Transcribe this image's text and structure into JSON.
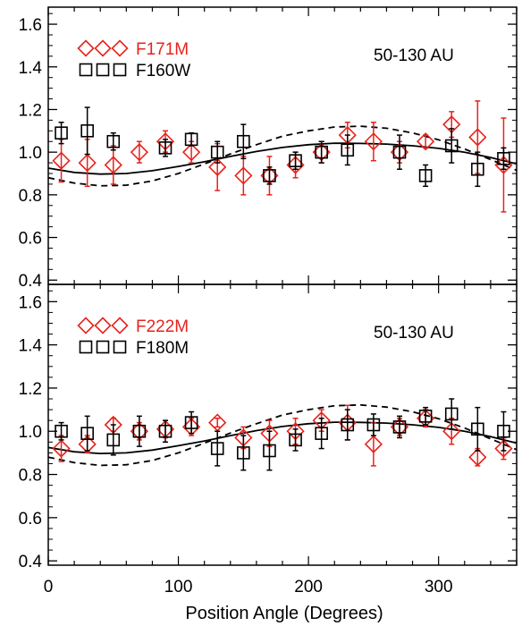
{
  "chart_data": [
    {
      "type": "scatter",
      "panel": "top",
      "xlim": [
        0,
        360
      ],
      "ylim": [
        0.38,
        1.68
      ],
      "y_ticks": [
        0.4,
        0.6,
        0.8,
        1.0,
        1.2,
        1.4,
        1.6
      ],
      "y_tick_labels": [
        "0.4",
        "0.6",
        "0.8",
        "1.0",
        "1.2",
        "1.4",
        "1.6"
      ],
      "annotation": "50-130 AU",
      "legend_position": "top-left",
      "series": [
        {
          "name": "F171M",
          "marker": "diamond",
          "color": "#e8221b",
          "points": [
            {
              "x": 10,
              "y": 0.96,
              "err": 0.1
            },
            {
              "x": 30,
              "y": 0.95,
              "err": 0.11
            },
            {
              "x": 50,
              "y": 0.94,
              "err": 0.09
            },
            {
              "x": 70,
              "y": 1.0,
              "err": 0.05
            },
            {
              "x": 90,
              "y": 1.05,
              "err": 0.05
            },
            {
              "x": 110,
              "y": 1.0,
              "err": 0.05
            },
            {
              "x": 130,
              "y": 0.93,
              "err": 0.11
            },
            {
              "x": 150,
              "y": 0.89,
              "err": 0.09
            },
            {
              "x": 170,
              "y": 0.89,
              "err": 0.09
            },
            {
              "x": 190,
              "y": 0.94,
              "err": 0.06
            },
            {
              "x": 210,
              "y": 1.0,
              "err": 0.05
            },
            {
              "x": 230,
              "y": 1.08,
              "err": 0.06
            },
            {
              "x": 250,
              "y": 1.05,
              "err": 0.09
            },
            {
              "x": 270,
              "y": 1.0,
              "err": 0.05
            },
            {
              "x": 290,
              "y": 1.05,
              "err": 0.03
            },
            {
              "x": 310,
              "y": 1.13,
              "err": 0.06
            },
            {
              "x": 330,
              "y": 1.07,
              "err": 0.17
            },
            {
              "x": 350,
              "y": 0.94,
              "err": 0.22
            }
          ]
        },
        {
          "name": "F160W",
          "marker": "square",
          "color": "#000000",
          "points": [
            {
              "x": 10,
              "y": 1.09,
              "err": 0.05
            },
            {
              "x": 30,
              "y": 1.1,
              "err": 0.11
            },
            {
              "x": 50,
              "y": 1.05,
              "err": 0.04
            },
            {
              "x": 90,
              "y": 1.02,
              "err": 0.04
            },
            {
              "x": 110,
              "y": 1.06,
              "err": 0.03
            },
            {
              "x": 130,
              "y": 1.0,
              "err": 0.05
            },
            {
              "x": 150,
              "y": 1.05,
              "err": 0.08
            },
            {
              "x": 170,
              "y": 0.89,
              "err": 0.04
            },
            {
              "x": 190,
              "y": 0.96,
              "err": 0.04
            },
            {
              "x": 210,
              "y": 1.0,
              "err": 0.05
            },
            {
              "x": 230,
              "y": 1.01,
              "err": 0.07
            },
            {
              "x": 270,
              "y": 1.0,
              "err": 0.08
            },
            {
              "x": 290,
              "y": 0.89,
              "err": 0.05
            },
            {
              "x": 310,
              "y": 1.03,
              "err": 0.08
            },
            {
              "x": 330,
              "y": 0.92,
              "err": 0.08
            },
            {
              "x": 350,
              "y": 0.97,
              "err": 0.05
            }
          ]
        }
      ],
      "models": [
        {
          "style": "solid",
          "points": [
            [
              0,
              0.925
            ],
            [
              20,
              0.905
            ],
            [
              40,
              0.897
            ],
            [
              60,
              0.9
            ],
            [
              80,
              0.913
            ],
            [
              100,
              0.933
            ],
            [
              120,
              0.955
            ],
            [
              140,
              0.98
            ],
            [
              160,
              1.003
            ],
            [
              180,
              1.022
            ],
            [
              200,
              1.035
            ],
            [
              220,
              1.042
            ],
            [
              240,
              1.041
            ],
            [
              260,
              1.038
            ],
            [
              280,
              1.03
            ],
            [
              300,
              1.018
            ],
            [
              320,
              1.0
            ],
            [
              340,
              0.975
            ],
            [
              360,
              0.945
            ]
          ]
        },
        {
          "style": "dashed",
          "points": [
            [
              0,
              0.88
            ],
            [
              20,
              0.855
            ],
            [
              40,
              0.842
            ],
            [
              60,
              0.845
            ],
            [
              80,
              0.865
            ],
            [
              100,
              0.9
            ],
            [
              120,
              0.945
            ],
            [
              140,
              0.992
            ],
            [
              160,
              1.035
            ],
            [
              180,
              1.075
            ],
            [
              200,
              1.1
            ],
            [
              220,
              1.118
            ],
            [
              240,
              1.122
            ],
            [
              260,
              1.112
            ],
            [
              280,
              1.09
            ],
            [
              300,
              1.058
            ],
            [
              320,
              1.015
            ],
            [
              340,
              0.965
            ],
            [
              360,
              0.915
            ]
          ]
        }
      ]
    },
    {
      "type": "scatter",
      "panel": "bottom",
      "xlim": [
        0,
        360
      ],
      "ylim": [
        0.38,
        1.68
      ],
      "x_ticks": [
        0,
        100,
        200,
        300
      ],
      "x_tick_labels": [
        "0",
        "100",
        "200",
        "300"
      ],
      "y_ticks": [
        0.4,
        0.6,
        0.8,
        1.0,
        1.2,
        1.4,
        1.6
      ],
      "y_tick_labels": [
        "0.4",
        "0.6",
        "0.8",
        "1.0",
        "1.2",
        "1.4",
        "1.6"
      ],
      "xlabel": "Position Angle (Degrees)",
      "annotation": "50-130 AU",
      "legend_position": "top-left",
      "series": [
        {
          "name": "F222M",
          "marker": "diamond",
          "color": "#e8221b",
          "points": [
            {
              "x": 10,
              "y": 0.92,
              "err": 0.06
            },
            {
              "x": 30,
              "y": 0.94,
              "err": 0.04
            },
            {
              "x": 50,
              "y": 1.03,
              "err": 0.03
            },
            {
              "x": 70,
              "y": 1.0,
              "err": 0.04
            },
            {
              "x": 90,
              "y": 1.01,
              "err": 0.04
            },
            {
              "x": 110,
              "y": 1.02,
              "err": 0.04
            },
            {
              "x": 130,
              "y": 1.04,
              "err": 0.02
            },
            {
              "x": 150,
              "y": 0.97,
              "err": 0.05
            },
            {
              "x": 170,
              "y": 0.99,
              "err": 0.06
            },
            {
              "x": 190,
              "y": 1.0,
              "err": 0.06
            },
            {
              "x": 210,
              "y": 1.05,
              "err": 0.05
            },
            {
              "x": 230,
              "y": 1.04,
              "err": 0.08
            },
            {
              "x": 250,
              "y": 0.94,
              "err": 0.1
            },
            {
              "x": 270,
              "y": 1.02,
              "err": 0.04
            },
            {
              "x": 290,
              "y": 1.06,
              "err": 0.04
            },
            {
              "x": 310,
              "y": 1.0,
              "err": 0.06
            },
            {
              "x": 330,
              "y": 0.88,
              "err": 0.04
            },
            {
              "x": 350,
              "y": 0.92,
              "err": 0.05
            }
          ]
        },
        {
          "name": "F180M",
          "marker": "square",
          "color": "#000000",
          "points": [
            {
              "x": 10,
              "y": 1.0,
              "err": 0.04
            },
            {
              "x": 30,
              "y": 0.99,
              "err": 0.08
            },
            {
              "x": 50,
              "y": 0.96,
              "err": 0.07
            },
            {
              "x": 70,
              "y": 1.0,
              "err": 0.07
            },
            {
              "x": 90,
              "y": 1.0,
              "err": 0.05
            },
            {
              "x": 110,
              "y": 1.04,
              "err": 0.05
            },
            {
              "x": 130,
              "y": 0.92,
              "err": 0.08
            },
            {
              "x": 150,
              "y": 0.9,
              "err": 0.08
            },
            {
              "x": 170,
              "y": 0.91,
              "err": 0.09
            },
            {
              "x": 190,
              "y": 0.96,
              "err": 0.05
            },
            {
              "x": 210,
              "y": 0.99,
              "err": 0.07
            },
            {
              "x": 230,
              "y": 1.03,
              "err": 0.07
            },
            {
              "x": 250,
              "y": 1.03,
              "err": 0.05
            },
            {
              "x": 270,
              "y": 1.02,
              "err": 0.05
            },
            {
              "x": 290,
              "y": 1.07,
              "err": 0.04
            },
            {
              "x": 310,
              "y": 1.08,
              "err": 0.07
            },
            {
              "x": 330,
              "y": 1.01,
              "err": 0.1
            },
            {
              "x": 350,
              "y": 1.0,
              "err": 0.09
            }
          ]
        }
      ],
      "models": [
        {
          "style": "solid",
          "points": [
            [
              0,
              0.925
            ],
            [
              20,
              0.905
            ],
            [
              40,
              0.897
            ],
            [
              60,
              0.9
            ],
            [
              80,
              0.913
            ],
            [
              100,
              0.933
            ],
            [
              120,
              0.955
            ],
            [
              140,
              0.98
            ],
            [
              160,
              1.003
            ],
            [
              180,
              1.022
            ],
            [
              200,
              1.035
            ],
            [
              220,
              1.042
            ],
            [
              240,
              1.041
            ],
            [
              260,
              1.038
            ],
            [
              280,
              1.03
            ],
            [
              300,
              1.018
            ],
            [
              320,
              1.0
            ],
            [
              340,
              0.975
            ],
            [
              360,
              0.945
            ]
          ]
        },
        {
          "style": "dashed",
          "points": [
            [
              0,
              0.88
            ],
            [
              20,
              0.855
            ],
            [
              40,
              0.842
            ],
            [
              60,
              0.845
            ],
            [
              80,
              0.865
            ],
            [
              100,
              0.9
            ],
            [
              120,
              0.945
            ],
            [
              140,
              0.992
            ],
            [
              160,
              1.035
            ],
            [
              180,
              1.075
            ],
            [
              200,
              1.1
            ],
            [
              220,
              1.118
            ],
            [
              240,
              1.122
            ],
            [
              260,
              1.112
            ],
            [
              280,
              1.09
            ],
            [
              300,
              1.058
            ],
            [
              320,
              1.015
            ],
            [
              340,
              0.965
            ],
            [
              360,
              0.915
            ]
          ]
        }
      ]
    }
  ]
}
